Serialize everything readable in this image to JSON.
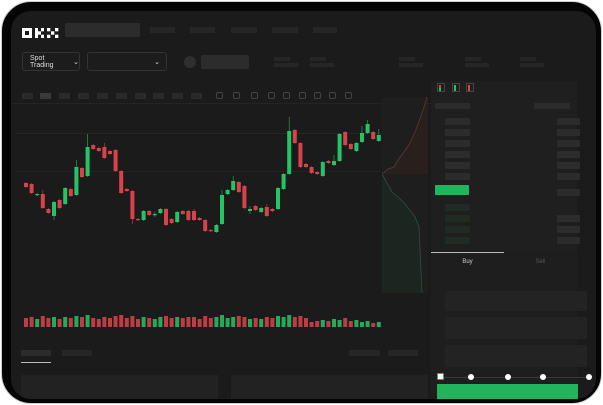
{
  "header": {
    "logo": "OKX"
  },
  "toolbar": {
    "market_label": "Spot Trading"
  },
  "trade_panel": {
    "tabs": [
      {
        "label": "Buy",
        "active": true
      },
      {
        "label": "Sell",
        "active": false
      }
    ],
    "leverage_slider_position": 0,
    "submit_color": "#22b45c"
  },
  "colors": {
    "up": "#24c365",
    "down": "#d8434a",
    "background": "#1b1b1b"
  },
  "chart_data": {
    "type": "candlestick",
    "grid": true,
    "ohlc": [
      [
        119,
        120,
        114,
        115
      ],
      [
        118,
        119,
        108,
        109
      ],
      [
        107,
        109,
        106,
        108
      ],
      [
        108,
        112,
        93,
        94
      ],
      [
        93,
        94,
        88,
        89
      ],
      [
        86,
        101,
        82,
        100
      ],
      [
        102,
        103,
        93,
        94
      ],
      [
        98,
        115,
        97,
        114
      ],
      [
        113,
        114,
        105,
        106
      ],
      [
        107,
        142,
        106,
        135
      ],
      [
        134,
        135,
        124,
        125
      ],
      [
        126,
        168,
        125,
        155
      ],
      [
        157,
        158,
        152,
        153
      ],
      [
        154,
        155,
        150,
        151
      ],
      [
        155,
        159,
        143,
        144
      ],
      [
        151,
        152,
        147,
        148
      ],
      [
        152,
        153,
        130,
        131
      ],
      [
        131,
        132,
        108,
        109
      ],
      [
        113,
        114,
        110,
        111
      ],
      [
        111,
        112,
        78,
        83
      ],
      [
        83,
        84,
        81,
        82
      ],
      [
        82,
        92,
        81,
        91
      ],
      [
        91,
        92,
        86,
        87
      ],
      [
        87,
        90,
        85,
        88
      ],
      [
        89,
        94,
        88,
        93
      ],
      [
        93,
        94,
        76,
        77
      ],
      [
        83,
        84,
        78,
        79
      ],
      [
        80,
        91,
        79,
        90
      ],
      [
        91,
        92,
        87,
        88
      ],
      [
        91,
        92,
        81,
        82
      ],
      [
        91,
        93,
        81,
        82
      ],
      [
        84,
        85,
        81,
        82
      ],
      [
        82,
        83,
        70,
        71
      ],
      [
        72,
        73,
        70,
        71
      ],
      [
        70,
        78,
        69,
        77
      ],
      [
        78,
        112,
        77,
        107
      ],
      [
        108,
        113,
        107,
        112
      ],
      [
        112,
        126,
        111,
        121
      ],
      [
        120,
        121,
        109,
        110
      ],
      [
        116,
        117,
        93,
        94
      ],
      [
        91,
        96,
        88,
        93
      ],
      [
        96,
        97,
        91,
        92
      ],
      [
        90,
        95,
        89,
        94
      ],
      [
        95,
        98,
        85,
        86
      ],
      [
        93,
        94,
        90,
        91
      ],
      [
        93,
        115,
        92,
        114
      ],
      [
        113,
        129,
        112,
        128
      ],
      [
        128,
        185,
        127,
        171
      ],
      [
        172,
        173,
        158,
        159
      ],
      [
        159,
        160,
        134,
        135
      ],
      [
        138,
        139,
        134,
        135
      ],
      [
        135,
        136,
        128,
        129
      ],
      [
        130,
        131,
        127,
        128
      ],
      [
        126,
        141,
        125,
        140
      ],
      [
        141,
        142,
        138,
        139
      ],
      [
        137,
        147,
        136,
        141
      ],
      [
        141,
        169,
        140,
        168
      ],
      [
        170,
        171,
        156,
        157
      ],
      [
        158,
        159,
        152,
        153
      ],
      [
        151,
        160,
        150,
        159
      ],
      [
        160,
        176,
        159,
        169
      ],
      [
        169,
        182,
        168,
        178
      ],
      [
        170,
        171,
        162,
        163
      ],
      [
        161,
        173,
        160,
        167
      ]
    ],
    "volume": [
      9,
      10,
      8,
      11,
      9,
      10,
      8,
      10,
      9,
      11,
      10,
      12,
      9,
      8,
      10,
      9,
      11,
      12,
      9,
      11,
      8,
      10,
      9,
      8,
      10,
      11,
      9,
      10,
      9,
      10,
      10,
      8,
      11,
      9,
      10,
      12,
      9,
      10,
      11,
      10,
      8,
      9,
      8,
      10,
      9,
      11,
      10,
      12,
      10,
      11,
      9,
      5,
      6,
      7,
      6,
      8,
      7,
      9,
      6,
      7,
      5,
      6,
      4,
      5
    ]
  }
}
